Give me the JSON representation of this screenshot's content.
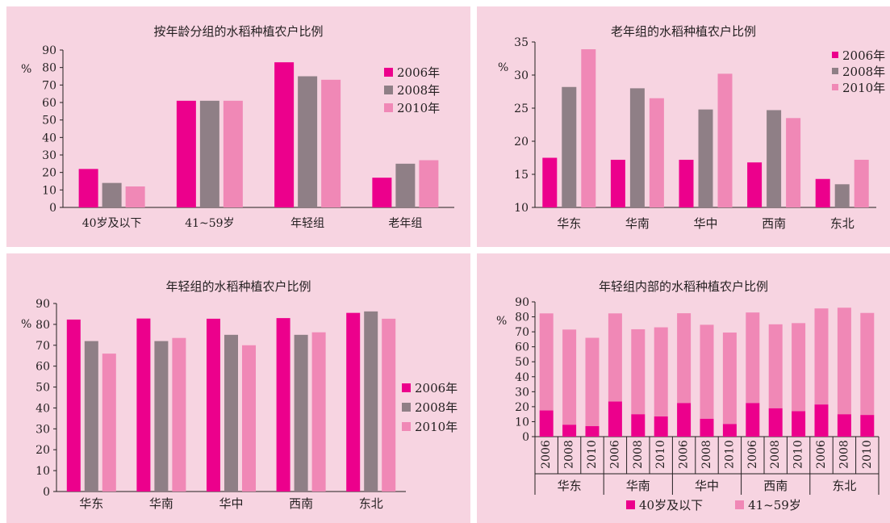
{
  "colors": {
    "c2006": "#ec008c",
    "c2008": "#8f7f86",
    "c2010": "#f088b6",
    "panel_bg": "#f7d4e1",
    "axis": "#231f20"
  },
  "chart_data": [
    {
      "type": "bar",
      "title": "按年龄分组的水稻种植农户比例",
      "unit": "%",
      "categories": [
        "40岁及以下",
        "41~59岁",
        "年轻组",
        "老年组"
      ],
      "series": [
        {
          "name": "2006年",
          "values": [
            22,
            61,
            83,
            17
          ]
        },
        {
          "name": "2008年",
          "values": [
            14,
            61,
            75,
            25
          ]
        },
        {
          "name": "2010年",
          "values": [
            12,
            61,
            73,
            27
          ]
        }
      ],
      "ylim": [
        0,
        90
      ],
      "yticks": [
        0,
        10,
        20,
        30,
        40,
        50,
        60,
        70,
        80,
        90
      ],
      "legend": "top-right"
    },
    {
      "type": "bar",
      "title": "老年组的水稻种植农户比例",
      "unit": "%",
      "categories": [
        "华东",
        "华南",
        "华中",
        "西南",
        "东北"
      ],
      "series": [
        {
          "name": "2006年",
          "values": [
            17.5,
            17.2,
            17.2,
            16.8,
            14.3
          ]
        },
        {
          "name": "2008年",
          "values": [
            28.2,
            28.0,
            24.8,
            24.7,
            13.5
          ]
        },
        {
          "name": "2010年",
          "values": [
            33.9,
            26.5,
            30.2,
            23.5,
            17.2
          ]
        }
      ],
      "ylim": [
        10,
        35
      ],
      "yticks": [
        10,
        15,
        20,
        25,
        30,
        35
      ],
      "legend": "top-right"
    },
    {
      "type": "bar",
      "title": "年轻组的水稻种植农户比例",
      "unit": "%",
      "categories": [
        "华东",
        "华南",
        "华中",
        "西南",
        "东北"
      ],
      "series": [
        {
          "name": "2006年",
          "values": [
            82.3,
            82.8,
            82.7,
            83.0,
            85.5
          ]
        },
        {
          "name": "2008年",
          "values": [
            72.0,
            72.0,
            75.0,
            75.0,
            86.2
          ]
        },
        {
          "name": "2010年",
          "values": [
            66.0,
            73.5,
            70.0,
            76.2,
            82.7
          ]
        }
      ],
      "ylim": [
        0,
        90
      ],
      "yticks": [
        0,
        10,
        20,
        30,
        40,
        50,
        60,
        70,
        80,
        90
      ],
      "legend": "right"
    },
    {
      "type": "bar",
      "stacked": true,
      "title": "年轻组内部的水稻种植农户比例",
      "unit": "%",
      "groups": [
        "华东",
        "华南",
        "华中",
        "西南",
        "东北"
      ],
      "years": [
        "2006",
        "2008",
        "2010"
      ],
      "series": [
        {
          "name": "40岁及以下",
          "values": [
            17.5,
            8,
            7,
            23.5,
            15,
            13.5,
            22.5,
            12,
            8.5,
            22.5,
            19,
            17,
            21.5,
            15,
            14.5
          ]
        },
        {
          "name": "41~59岁",
          "values": [
            64.8,
            63.5,
            59,
            58.8,
            56.7,
            59.5,
            59.9,
            62.7,
            61,
            60.4,
            56,
            58.8,
            64.1,
            71.1,
            68.1
          ]
        }
      ],
      "ylim": [
        0,
        90
      ],
      "yticks": [
        0,
        10,
        20,
        30,
        40,
        50,
        60,
        70,
        80,
        90
      ],
      "legend": "bottom"
    }
  ]
}
